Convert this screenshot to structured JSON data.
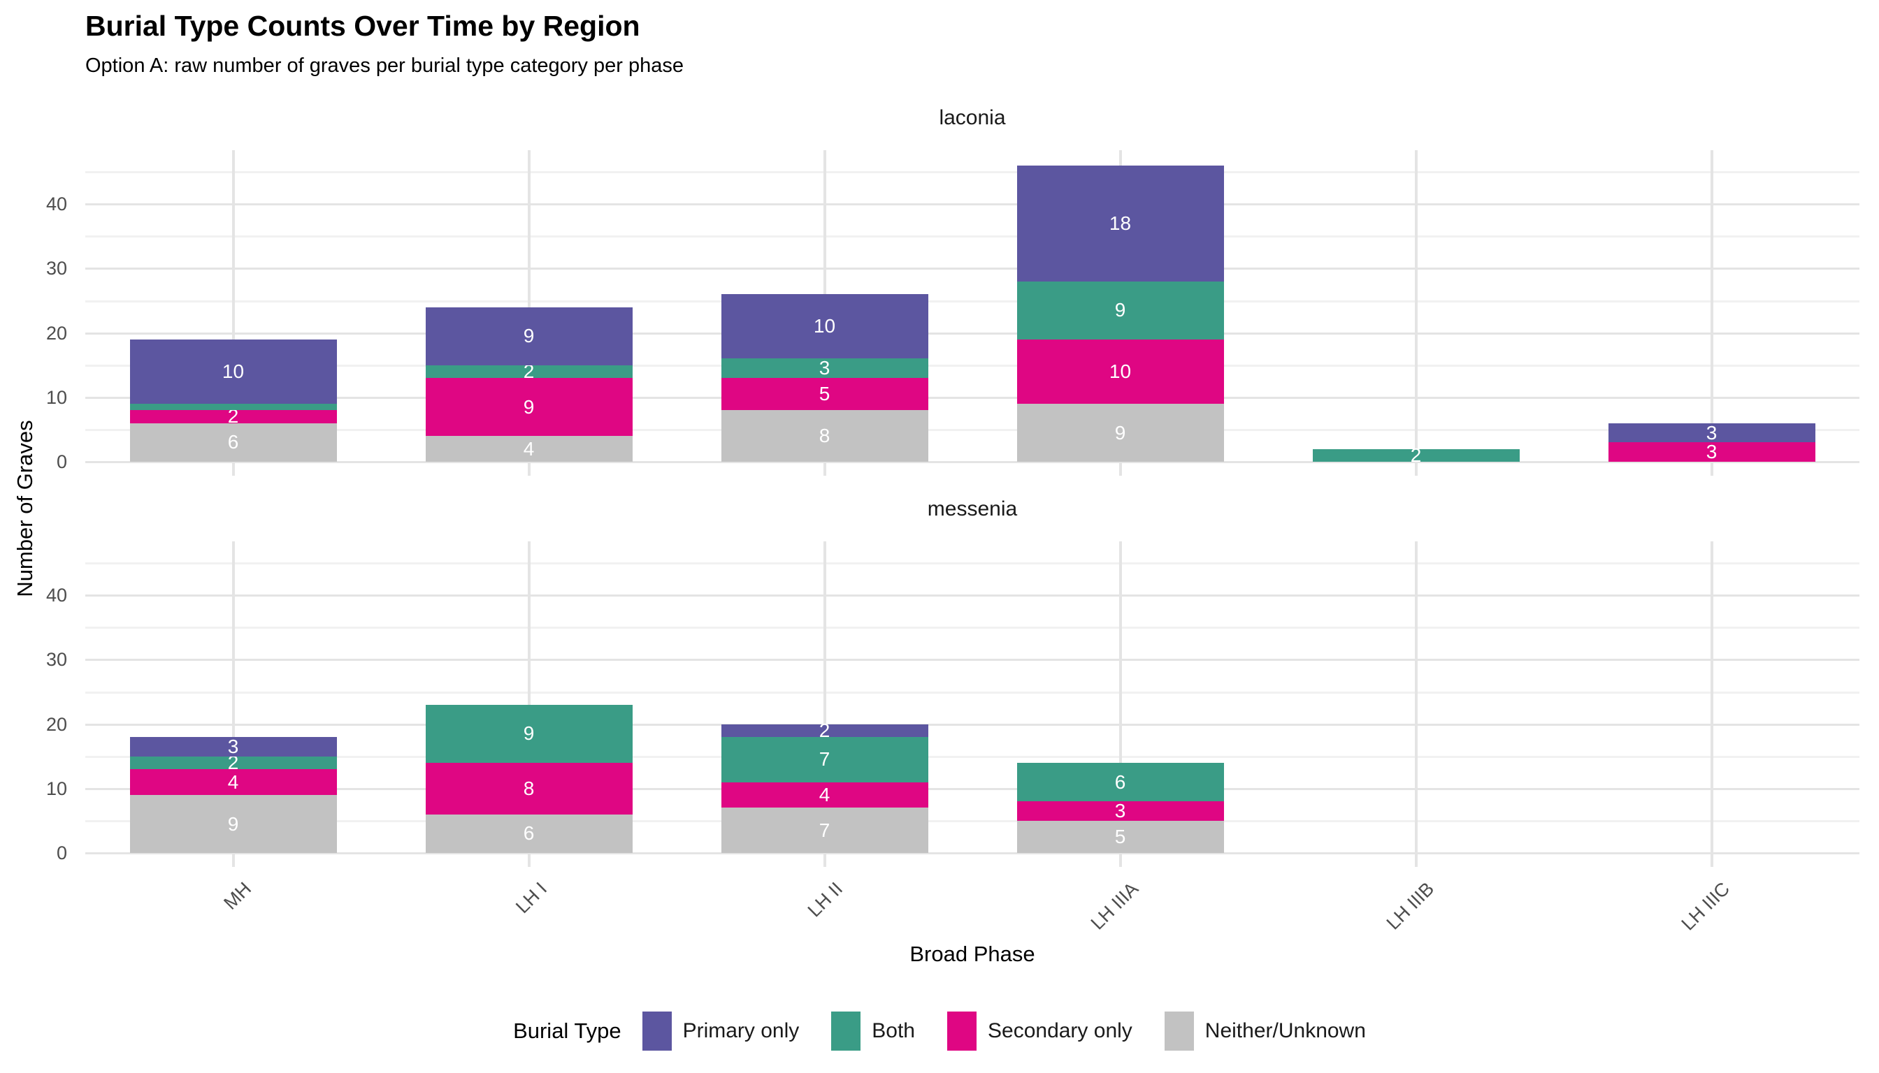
{
  "chart_data": {
    "type": "bar",
    "stacked": true,
    "title": "Burial Type Counts Over Time by Region",
    "subtitle": "Option A: raw number of graves per burial type category per phase",
    "xlabel": "Broad Phase",
    "ylabel": "Number of Graves",
    "legend_title": "Burial Type",
    "legend_position": "bottom",
    "categories": [
      "MH",
      "LH I",
      "LH II",
      "LH IIIA",
      "LH IIIB",
      "LH IIIC"
    ],
    "y_ticks": [
      0,
      10,
      20,
      30,
      40
    ],
    "ylim": [
      0,
      46
    ],
    "grid": {
      "major_step": 10,
      "minor_step": 5,
      "vertical_at_categories": true
    },
    "stack_order_bottom_to_top": [
      "Neither/Unknown",
      "Secondary only",
      "Both",
      "Primary only"
    ],
    "legend": [
      {
        "label": "Primary only",
        "color": "#5C56A0"
      },
      {
        "label": "Both",
        "color": "#3A9C86"
      },
      {
        "label": "Secondary only",
        "color": "#DF0683"
      },
      {
        "label": "Neither/Unknown",
        "color": "#C2C2C2"
      }
    ],
    "value_label_color": "#FFFFFF",
    "facets": [
      {
        "name": "laconia",
        "series": [
          {
            "name": "Primary only",
            "values": [
              10,
              9,
              10,
              18,
              0,
              3
            ]
          },
          {
            "name": "Both",
            "values": [
              1,
              2,
              3,
              9,
              2,
              0
            ]
          },
          {
            "name": "Secondary only",
            "values": [
              2,
              9,
              5,
              10,
              0,
              3
            ]
          },
          {
            "name": "Neither/Unknown",
            "values": [
              6,
              4,
              8,
              9,
              0,
              0
            ]
          }
        ]
      },
      {
        "name": "messenia",
        "series": [
          {
            "name": "Primary only",
            "values": [
              3,
              0,
              2,
              0,
              0,
              0
            ]
          },
          {
            "name": "Both",
            "values": [
              2,
              9,
              7,
              6,
              0,
              0
            ]
          },
          {
            "name": "Secondary only",
            "values": [
              4,
              8,
              4,
              3,
              0,
              0
            ]
          },
          {
            "name": "Neither/Unknown",
            "values": [
              9,
              6,
              7,
              5,
              0,
              0
            ]
          }
        ]
      }
    ]
  }
}
